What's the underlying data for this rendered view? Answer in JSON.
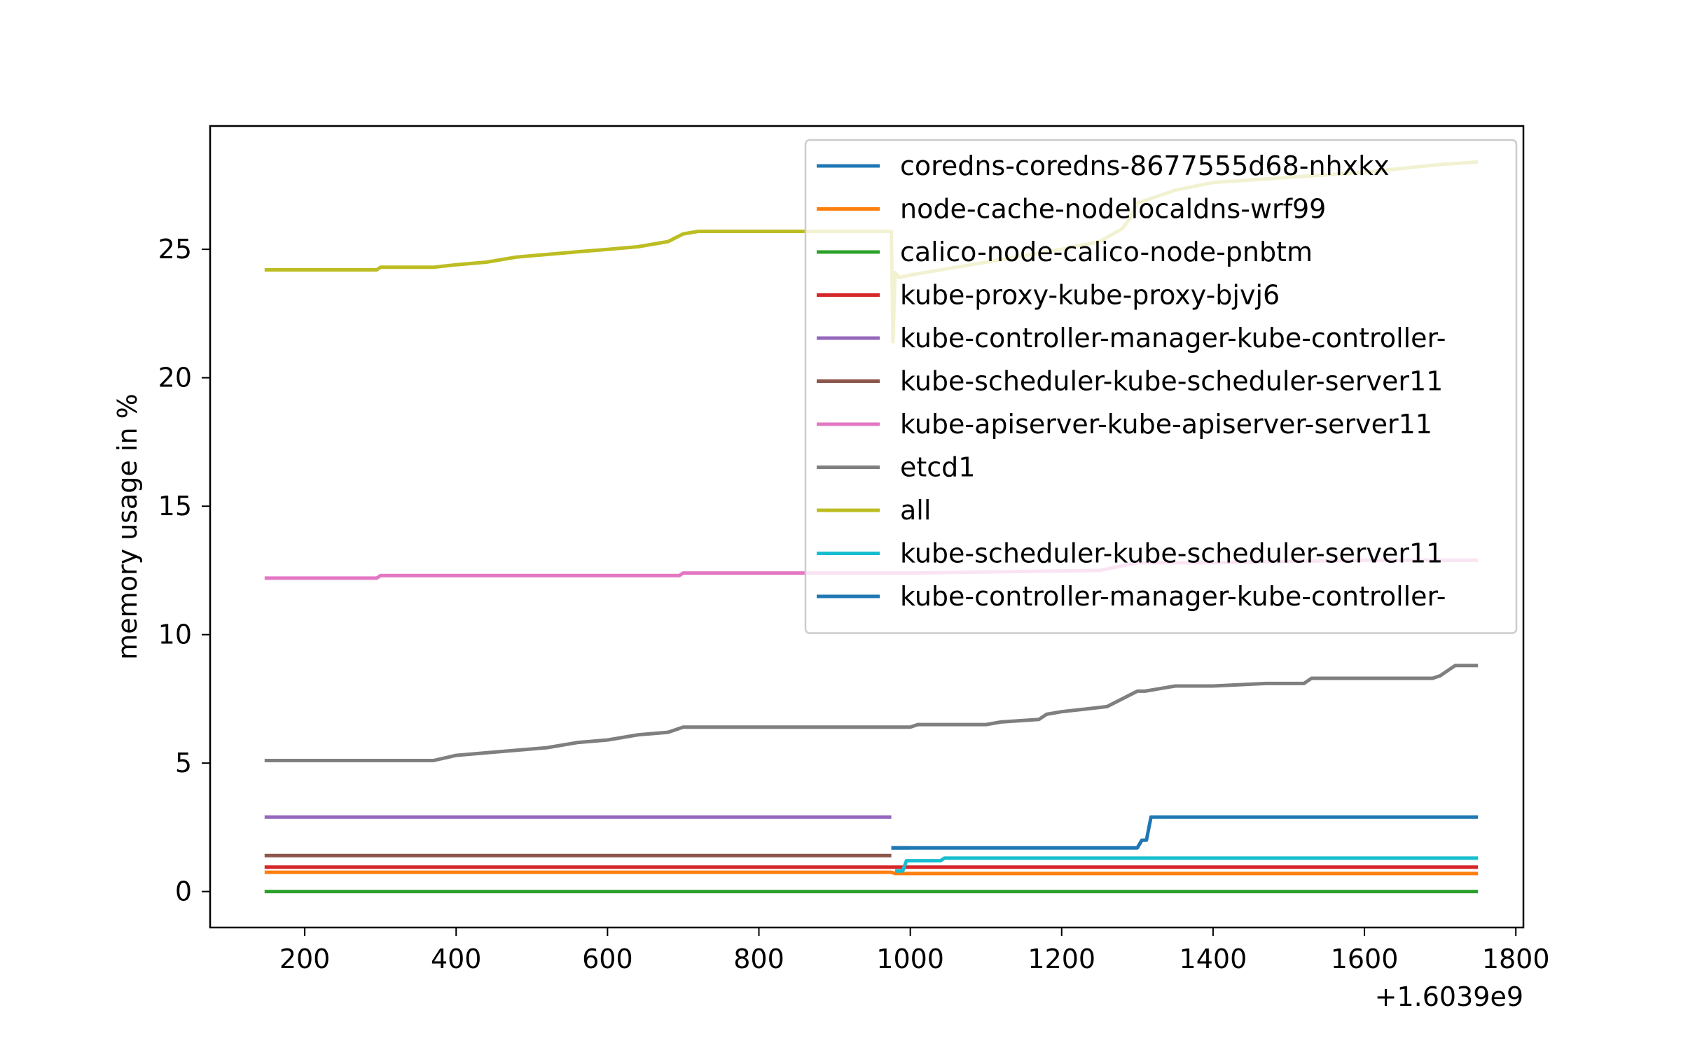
{
  "chart_data": {
    "type": "line",
    "title": "",
    "xlabel": "",
    "ylabel": "memory usage in %",
    "x_offset_label": "+1.6039e9",
    "xlim": [
      75,
      1810
    ],
    "ylim": [
      -1.4,
      29.8
    ],
    "xticks": [
      200,
      400,
      600,
      800,
      1000,
      1200,
      1400,
      1600,
      1800
    ],
    "yticks": [
      0,
      5,
      10,
      15,
      20,
      25
    ],
    "grid": false,
    "legend_position": "upper right",
    "series": [
      {
        "name": "coredns-coredns-8677555d68-nhxkx",
        "color": "#1f77b4",
        "x": [
          975,
          1000,
          1100,
          1200,
          1300,
          1306,
          1312,
          1318,
          1325,
          1400,
          1600,
          1750
        ],
        "y": [
          1.7,
          1.7,
          1.7,
          1.7,
          1.7,
          2.0,
          2.0,
          2.9,
          2.9,
          2.9,
          2.9,
          2.9
        ]
      },
      {
        "name": "node-cache-nodelocaldns-wrf99",
        "color": "#ff7f0e",
        "x": [
          147,
          400,
          800,
          975,
          980,
          1200,
          1500,
          1750
        ],
        "y": [
          0.75,
          0.75,
          0.75,
          0.75,
          0.7,
          0.7,
          0.7,
          0.7
        ]
      },
      {
        "name": "calico-node-calico-node-pnbtm",
        "color": "#2ca02c",
        "x": [
          147,
          500,
          1000,
          1500,
          1750
        ],
        "y": [
          0.0,
          0.0,
          0.0,
          0.0,
          0.0
        ]
      },
      {
        "name": "kube-proxy-kube-proxy-bjvj6",
        "color": "#d62728",
        "x": [
          147,
          500,
          1000,
          1500,
          1750
        ],
        "y": [
          0.95,
          0.95,
          0.95,
          0.95,
          0.95
        ]
      },
      {
        "name": "kube-controller-manager-kube-controller-",
        "color": "#9467bd",
        "x": [
          147,
          400,
          700,
          975
        ],
        "y": [
          2.9,
          2.9,
          2.9,
          2.9
        ]
      },
      {
        "name": "kube-scheduler-kube-scheduler-server11",
        "color": "#8c564b",
        "x": [
          147,
          400,
          700,
          975
        ],
        "y": [
          1.4,
          1.4,
          1.4,
          1.4
        ]
      },
      {
        "name": "kube-apiserver-kube-apiserver-server11",
        "color": "#e377c2",
        "x": [
          147,
          295,
          300,
          695,
          700,
          1000,
          1250,
          1300,
          1400,
          1600,
          1750
        ],
        "y": [
          12.2,
          12.2,
          12.3,
          12.3,
          12.4,
          12.4,
          12.5,
          12.8,
          12.8,
          12.9,
          12.9
        ]
      },
      {
        "name": "etcd1",
        "color": "#7f7f7f",
        "x": [
          147,
          370,
          400,
          440,
          480,
          520,
          560,
          600,
          640,
          680,
          700,
          800,
          900,
          1000,
          1010,
          1100,
          1120,
          1170,
          1180,
          1200,
          1230,
          1260,
          1280,
          1300,
          1310,
          1330,
          1350,
          1400,
          1470,
          1520,
          1530,
          1600,
          1690,
          1700,
          1710,
          1720,
          1750
        ],
        "y": [
          5.1,
          5.1,
          5.3,
          5.4,
          5.5,
          5.6,
          5.8,
          5.9,
          6.1,
          6.2,
          6.4,
          6.4,
          6.4,
          6.4,
          6.5,
          6.5,
          6.6,
          6.7,
          6.9,
          7.0,
          7.1,
          7.2,
          7.5,
          7.8,
          7.8,
          7.9,
          8.0,
          8.0,
          8.1,
          8.1,
          8.3,
          8.3,
          8.3,
          8.4,
          8.6,
          8.8,
          8.8
        ]
      },
      {
        "name": "all",
        "color": "#bcbd22",
        "x": [
          147,
          295,
          300,
          370,
          400,
          440,
          480,
          520,
          560,
          600,
          640,
          680,
          700,
          720,
          800,
          900,
          975,
          977,
          980,
          985,
          1000,
          1100,
          1200,
          1250,
          1280,
          1290,
          1300,
          1350,
          1400,
          1500,
          1600,
          1700,
          1750
        ],
        "y": [
          24.2,
          24.2,
          24.3,
          24.3,
          24.4,
          24.5,
          24.7,
          24.8,
          24.9,
          25.0,
          25.1,
          25.3,
          25.6,
          25.7,
          25.7,
          25.7,
          25.7,
          21.4,
          24.1,
          23.9,
          24.0,
          24.5,
          25.0,
          25.3,
          25.8,
          26.2,
          26.8,
          27.3,
          27.6,
          27.8,
          28.0,
          28.3,
          28.4
        ]
      },
      {
        "name": "kube-scheduler-kube-scheduler-server11",
        "color": "#17becf",
        "x": [
          980,
          990,
          995,
          1040,
          1045,
          1300,
          1500,
          1750
        ],
        "y": [
          0.8,
          0.8,
          1.2,
          1.2,
          1.3,
          1.3,
          1.3,
          1.3
        ]
      },
      {
        "name": "kube-controller-manager-kube-controller-",
        "color": "#1f77b4",
        "x": [
          975,
          1000
        ],
        "y": [
          1.7,
          1.7
        ]
      }
    ]
  }
}
